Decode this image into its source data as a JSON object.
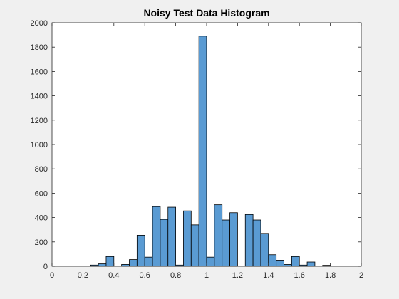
{
  "chart_data": {
    "type": "bar",
    "title": "Noisy Test Data Histogram",
    "xlabel": "",
    "ylabel": "",
    "xlim": [
      0,
      2
    ],
    "ylim": [
      0,
      2000
    ],
    "x_ticks": [
      "0",
      "0.2",
      "0.4",
      "0.6",
      "0.8",
      "1",
      "1.2",
      "1.4",
      "1.6",
      "1.8",
      "2"
    ],
    "y_ticks": [
      "0",
      "200",
      "400",
      "600",
      "800",
      "1000",
      "1200",
      "1400",
      "1600",
      "1800",
      "2000"
    ],
    "bin_width": 0.05,
    "bins": [
      {
        "start": 0.25,
        "count": 10
      },
      {
        "start": 0.3,
        "count": 20
      },
      {
        "start": 0.35,
        "count": 80
      },
      {
        "start": 0.4,
        "count": 0
      },
      {
        "start": 0.45,
        "count": 15
      },
      {
        "start": 0.5,
        "count": 55
      },
      {
        "start": 0.55,
        "count": 255
      },
      {
        "start": 0.6,
        "count": 75
      },
      {
        "start": 0.65,
        "count": 490
      },
      {
        "start": 0.7,
        "count": 385
      },
      {
        "start": 0.75,
        "count": 485
      },
      {
        "start": 0.8,
        "count": 10
      },
      {
        "start": 0.85,
        "count": 455
      },
      {
        "start": 0.9,
        "count": 340
      },
      {
        "start": 0.95,
        "count": 1890
      },
      {
        "start": 1.0,
        "count": 75
      },
      {
        "start": 1.05,
        "count": 505
      },
      {
        "start": 1.1,
        "count": 380
      },
      {
        "start": 1.15,
        "count": 440
      },
      {
        "start": 1.2,
        "count": 0
      },
      {
        "start": 1.25,
        "count": 425
      },
      {
        "start": 1.3,
        "count": 380
      },
      {
        "start": 1.35,
        "count": 270
      },
      {
        "start": 1.4,
        "count": 95
      },
      {
        "start": 1.45,
        "count": 50
      },
      {
        "start": 1.5,
        "count": 15
      },
      {
        "start": 1.55,
        "count": 80
      },
      {
        "start": 1.6,
        "count": 10
      },
      {
        "start": 1.65,
        "count": 35
      },
      {
        "start": 1.7,
        "count": 0
      },
      {
        "start": 1.75,
        "count": 8
      }
    ],
    "grid": false,
    "legend": "none",
    "colors": {
      "bar_fill": "#5a9bd3",
      "bar_edge": "#000000",
      "axes": "#262626",
      "plot_background": "#ffffff",
      "figure_background": "#f0f0f0"
    }
  }
}
